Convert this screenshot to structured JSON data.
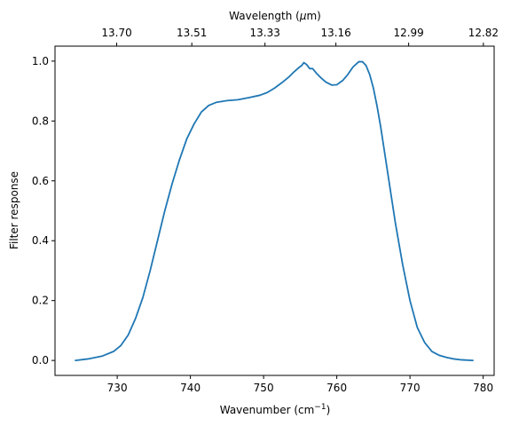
{
  "chart_data": {
    "type": "line",
    "title": "",
    "xlabel": "Wavenumber (cm",
    "xlabel_superscript": "−1",
    "xlabel_suffix": ")",
    "ylabel": "Filter response",
    "secondary_xlabel": "Wavelength (",
    "secondary_xlabel_mu": "μ",
    "secondary_xlabel_suffix": "m)",
    "xlim": [
      721.5,
      781.5
    ],
    "ylim": [
      -0.05,
      1.05
    ],
    "grid": false,
    "legend": "none",
    "line_color": "#1f77b4",
    "x_ticks": [
      730,
      740,
      750,
      760,
      770,
      780
    ],
    "x_tick_labels": [
      "730",
      "740",
      "750",
      "760",
      "770",
      "780"
    ],
    "y_ticks": [
      0.0,
      0.2,
      0.4,
      0.6,
      0.8,
      1.0
    ],
    "y_tick_labels": [
      "0.0",
      "0.2",
      "0.4",
      "0.6",
      "0.8",
      "1.0"
    ],
    "secondary_x_tick_labels": [
      "13.70",
      "13.51",
      "13.33",
      "13.16",
      "12.99",
      "12.82"
    ],
    "secondary_x_tick_wavenumbers": [
      729.93,
      740.19,
      750.19,
      759.88,
      769.82,
      780.03
    ],
    "series": [
      {
        "x": [
          724.3,
          726,
          728,
          729.5,
          730.5,
          731.5,
          732.5,
          733.5,
          734.5,
          735.5,
          736.5,
          737.5,
          738.5,
          739.5,
          740.5,
          741.5,
          742.5,
          743.5,
          745,
          746.5,
          748,
          749.5,
          750.5,
          751.5,
          752.5,
          753.5,
          754.2,
          754.8,
          755.2,
          755.5,
          755.9,
          756.3,
          756.7,
          757.2,
          757.8,
          758.5,
          759.3,
          760,
          760.8,
          761.5,
          762.2,
          763,
          763.5,
          764,
          764.5,
          765,
          765.5,
          766,
          766.5,
          767,
          767.5,
          768,
          768.5,
          769,
          770,
          771,
          772,
          773,
          774,
          775,
          776,
          777,
          778.6
        ],
        "y": [
          0.0,
          0.005,
          0.015,
          0.03,
          0.05,
          0.085,
          0.14,
          0.21,
          0.3,
          0.4,
          0.5,
          0.59,
          0.67,
          0.74,
          0.79,
          0.83,
          0.852,
          0.862,
          0.868,
          0.871,
          0.878,
          0.886,
          0.895,
          0.91,
          0.928,
          0.948,
          0.965,
          0.978,
          0.985,
          0.995,
          0.988,
          0.975,
          0.975,
          0.96,
          0.945,
          0.93,
          0.92,
          0.921,
          0.935,
          0.955,
          0.98,
          0.998,
          0.998,
          0.985,
          0.955,
          0.91,
          0.85,
          0.78,
          0.7,
          0.62,
          0.54,
          0.46,
          0.39,
          0.32,
          0.2,
          0.11,
          0.06,
          0.03,
          0.017,
          0.01,
          0.005,
          0.002,
          0.0
        ]
      }
    ]
  }
}
